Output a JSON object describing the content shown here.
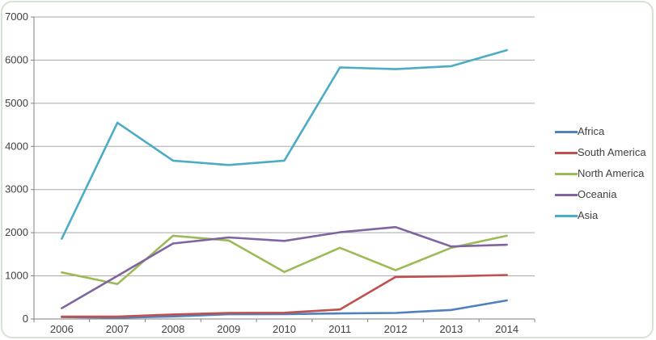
{
  "chart_data": {
    "type": "line",
    "title": "",
    "categories": [
      "2006",
      "2007",
      "2008",
      "2009",
      "2010",
      "2011",
      "2012",
      "2013",
      "2014"
    ],
    "series": [
      {
        "name": "Africa",
        "color": "#4F81BD",
        "values": [
          45,
          30,
          60,
          110,
          115,
          130,
          140,
          210,
          430
        ]
      },
      {
        "name": "South America",
        "color": "#C0504D",
        "values": [
          55,
          55,
          105,
          140,
          145,
          220,
          975,
          990,
          1020
        ]
      },
      {
        "name": "North America",
        "color": "#9BBB59",
        "values": [
          1080,
          810,
          1930,
          1820,
          1090,
          1650,
          1130,
          1650,
          1930
        ]
      },
      {
        "name": "Oceania",
        "color": "#8064A2",
        "values": [
          250,
          1000,
          1750,
          1890,
          1810,
          2010,
          2130,
          1680,
          1720
        ]
      },
      {
        "name": "Asia",
        "color": "#4BACC6",
        "values": [
          1860,
          4550,
          3670,
          3570,
          3670,
          5830,
          5790,
          5860,
          6230
        ]
      }
    ],
    "xlabel": "",
    "ylabel": "",
    "ylim": [
      0,
      7000
    ],
    "y_ticks": [
      0,
      1000,
      2000,
      3000,
      4000,
      5000,
      6000,
      7000
    ],
    "grid": true,
    "legend_position": "right"
  },
  "style": {
    "axis_color": "#808080",
    "gridline_color": "#a6a6a6",
    "text_color": "#404040",
    "frame_border_color": "#d6e2d2",
    "background": "#ffffff"
  }
}
